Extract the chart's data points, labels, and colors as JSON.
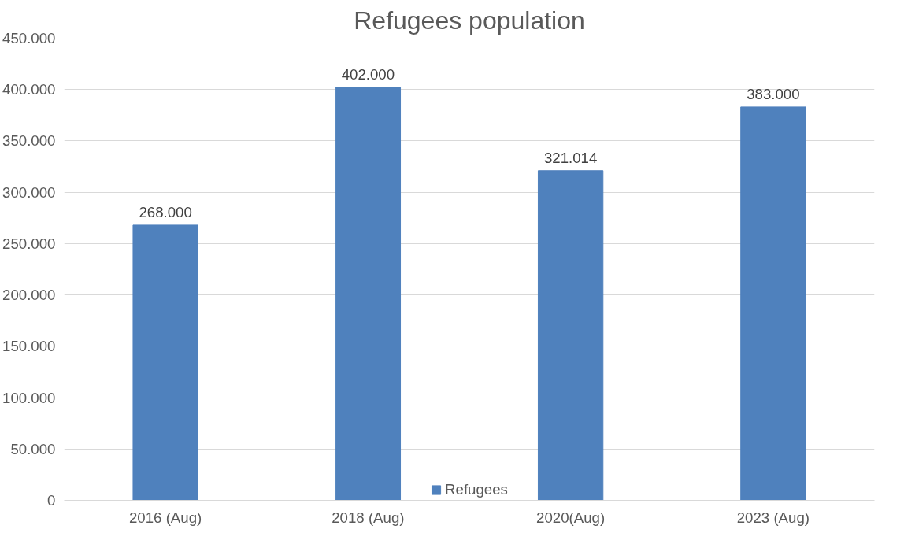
{
  "chart_data": {
    "type": "bar",
    "title": "Refugees population",
    "categories": [
      "2016 (Aug)",
      "2018 (Aug)",
      "2020(Aug)",
      "2023 (Aug)"
    ],
    "series": [
      {
        "name": "Refugees",
        "color": "#4f81bd",
        "values": [
          268000,
          402000,
          321014,
          383000
        ],
        "value_labels": [
          "268.000",
          "402.000",
          "321.014",
          "383.000"
        ]
      }
    ],
    "ylim": [
      0,
      450000
    ],
    "yticks": [
      {
        "value": 0,
        "label": "0"
      },
      {
        "value": 50000,
        "label": "50.000"
      },
      {
        "value": 100000,
        "label": "100.000"
      },
      {
        "value": 150000,
        "label": "150.000"
      },
      {
        "value": 200000,
        "label": "200.000"
      },
      {
        "value": 250000,
        "label": "250.000"
      },
      {
        "value": 300000,
        "label": "300.000"
      },
      {
        "value": 350000,
        "label": "350.000"
      },
      {
        "value": 400000,
        "label": "400.000"
      },
      {
        "value": 450000,
        "label": "450.000"
      }
    ],
    "grid": "y",
    "legend": "bottom"
  }
}
